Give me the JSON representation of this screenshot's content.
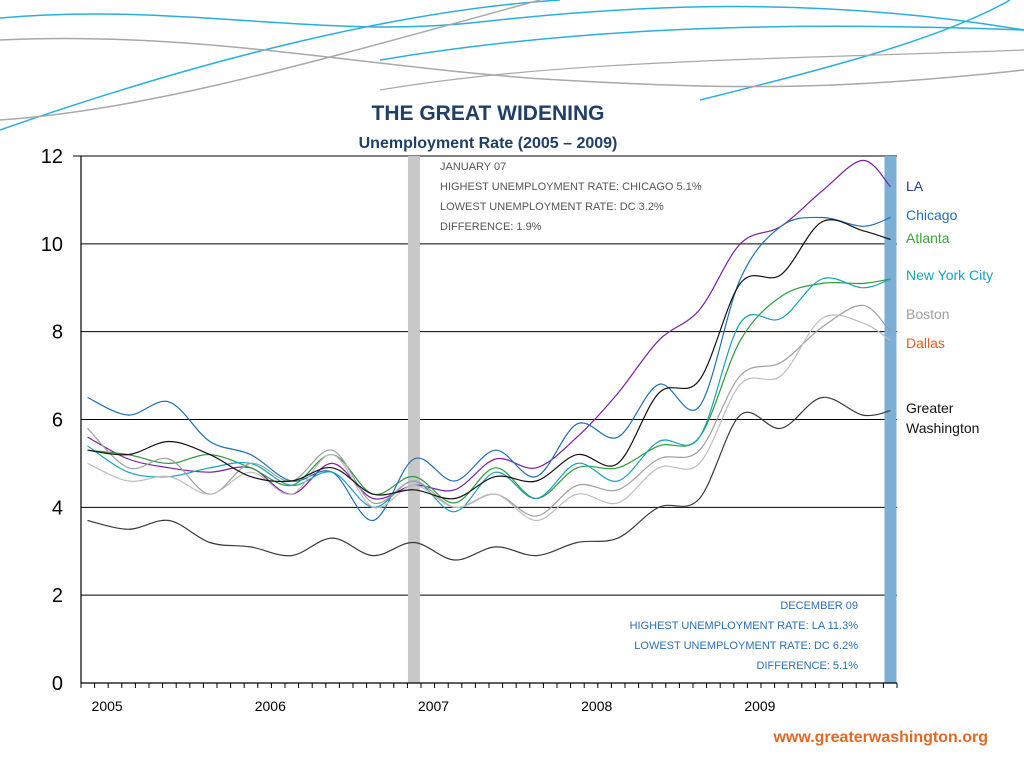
{
  "footer": "www.greaterwashington.org",
  "colors": {
    "deco_blue": "#2aaee0",
    "deco_gray": "#a8a8a8",
    "highlight_gray": "#c8c8c8",
    "highlight_blue": "#7bafd4"
  },
  "chart_data": {
    "type": "line",
    "title": "THE GREAT WIDENING",
    "subtitle": "Unemployment Rate (2005 – 2009)",
    "ylim": [
      0,
      12
    ],
    "yticks": [
      0,
      2,
      4,
      6,
      8,
      10,
      12
    ],
    "xlim": [
      2004.96,
      2009.96
    ],
    "x_tick_labels": [
      {
        "label": "2005",
        "x": 2005.12
      },
      {
        "label": "2006",
        "x": 2006.12
      },
      {
        "label": "2007",
        "x": 2007.12
      },
      {
        "label": "2008",
        "x": 2008.12
      },
      {
        "label": "2009",
        "x": 2009.12
      }
    ],
    "grid": "horizontal",
    "legend_position": "right",
    "highlights": [
      {
        "label": "January 07",
        "x": 2007.0,
        "color": "#c8c8c8"
      },
      {
        "label": "December 09",
        "x": 2009.92,
        "color": "#7bafd4"
      }
    ],
    "annotations_top": [
      "JANUARY 07",
      "HIGHEST UNEMPLOYMENT RATE: CHICAGO 5.1%",
      "LOWEST UNEMPLOYMENT RATE: DC 3.2%",
      "DIFFERENCE: 1.9%"
    ],
    "annotations_bottom": [
      "DECEMBER 09",
      "HIGHEST UNEMPLOYMENT RATE: LA 11.3%",
      "LOWEST UNEMPLOYMENT RATE: DC 6.2%",
      "DIFFERENCE: 5.1%"
    ],
    "x": [
      2005.0,
      2005.25,
      2005.5,
      2005.75,
      2006.0,
      2006.25,
      2006.5,
      2006.75,
      2007.0,
      2007.25,
      2007.5,
      2007.75,
      2008.0,
      2008.25,
      2008.5,
      2008.75,
      2009.0,
      2009.25,
      2009.5,
      2009.75,
      2009.92
    ],
    "series": [
      {
        "name": "LA",
        "color": "#7b1fa2",
        "values": [
          5.6,
          5.1,
          4.9,
          4.8,
          4.9,
          4.3,
          5.0,
          4.2,
          4.5,
          4.4,
          5.1,
          4.9,
          5.6,
          6.6,
          7.8,
          8.5,
          10.0,
          10.4,
          11.2,
          11.9,
          11.3
        ]
      },
      {
        "name": "Chicago",
        "color": "#1f6fb5",
        "values": [
          6.5,
          6.1,
          6.4,
          5.5,
          5.2,
          4.6,
          4.8,
          3.7,
          5.1,
          4.6,
          5.3,
          4.7,
          5.9,
          5.6,
          6.8,
          6.3,
          9.2,
          10.4,
          10.6,
          10.4,
          10.6
        ]
      },
      {
        "name": "Atlanta",
        "color": "#2e9a3b",
        "values": [
          5.3,
          5.2,
          5.0,
          5.2,
          4.9,
          4.5,
          5.2,
          4.3,
          4.7,
          4.1,
          4.9,
          4.2,
          4.9,
          4.9,
          5.4,
          5.6,
          7.8,
          8.8,
          9.1,
          9.1,
          9.2
        ]
      },
      {
        "name": "New York City",
        "color": "#17a2b8",
        "values": [
          5.4,
          4.8,
          4.7,
          4.9,
          5.0,
          4.5,
          4.8,
          4.0,
          4.6,
          3.9,
          4.8,
          4.2,
          5.0,
          4.6,
          5.5,
          5.6,
          8.2,
          8.3,
          9.2,
          9.0,
          9.2
        ]
      },
      {
        "name": "Boston",
        "color": "#9e9e9e",
        "values": [
          5.8,
          4.9,
          5.1,
          4.3,
          5.0,
          4.6,
          5.3,
          4.1,
          4.6,
          4.0,
          4.3,
          3.8,
          4.5,
          4.4,
          5.1,
          5.3,
          7.0,
          7.3,
          8.1,
          8.6,
          8.0
        ]
      },
      {
        "name": "Dallas",
        "color": "#bdbdbd",
        "values": [
          5.0,
          4.6,
          4.7,
          4.3,
          4.8,
          4.3,
          5.2,
          4.0,
          4.5,
          4.0,
          4.3,
          3.7,
          4.3,
          4.1,
          4.9,
          5.0,
          6.8,
          7.0,
          8.3,
          8.2,
          7.8
        ]
      },
      {
        "name": "Greater Washington",
        "color": "#111111",
        "values": [
          5.3,
          5.2,
          5.5,
          5.2,
          4.7,
          4.6,
          4.9,
          4.3,
          4.4,
          4.2,
          4.7,
          4.6,
          5.2,
          5.0,
          6.6,
          6.9,
          9.1,
          9.3,
          10.5,
          10.3,
          10.1
        ]
      },
      {
        "name": "",
        "color": "#3a3a3a",
        "values": [
          3.7,
          3.5,
          3.7,
          3.2,
          3.1,
          2.9,
          3.3,
          2.9,
          3.2,
          2.8,
          3.1,
          2.9,
          3.2,
          3.3,
          4.0,
          4.2,
          6.1,
          5.8,
          6.5,
          6.1,
          6.2
        ]
      }
    ]
  },
  "legend": [
    {
      "label": "LA",
      "color": "#1f3f8c"
    },
    {
      "label": "Chicago",
      "color": "#1f6fb5"
    },
    {
      "label": "Atlanta",
      "color": "#3aa635"
    },
    {
      "label": "New York City",
      "color": "#17a2b8"
    },
    {
      "label": "Boston",
      "color": "#a0a0a0"
    },
    {
      "label": "Dallas",
      "color": "#e0602a"
    },
    {
      "label": "Greater\nWashington",
      "color": "#111111"
    }
  ]
}
